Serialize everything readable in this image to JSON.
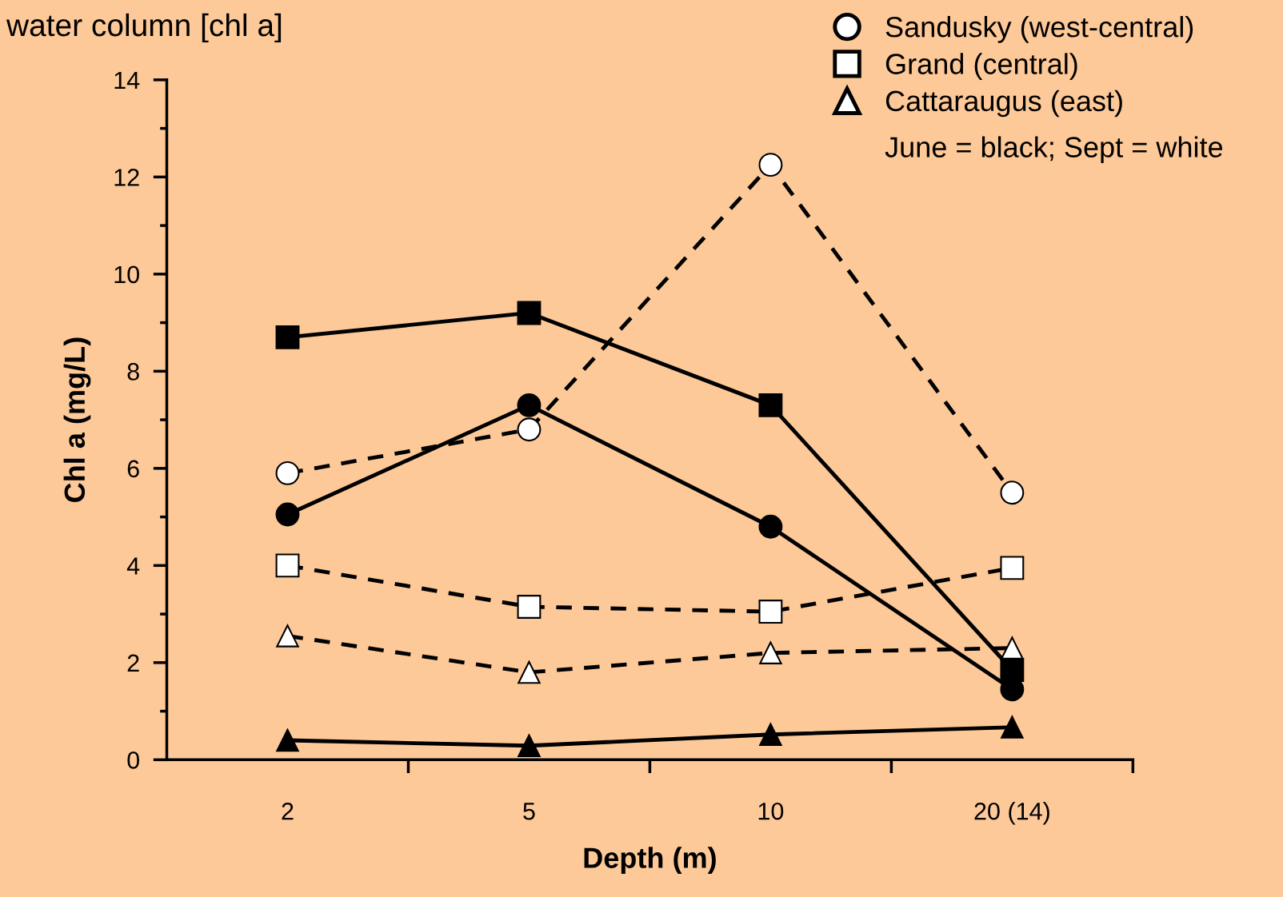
{
  "chart_data": {
    "type": "line",
    "title": "water column [chl a]",
    "xlabel": "Depth (m)",
    "ylabel": "Chl a (mg/L)",
    "categories": [
      "2",
      "5",
      "10",
      "20 (14)"
    ],
    "ylim": [
      0,
      14
    ],
    "yticks": [
      0,
      2,
      4,
      6,
      8,
      10,
      12,
      14
    ],
    "grid": false,
    "legend": "top right",
    "series": [
      {
        "name": "Sandusky (west-central)",
        "color": "#ffffff",
        "marker": "circle",
        "line_style": "dashed",
        "values": [
          5.9,
          6.8,
          12.25,
          5.5
        ]
      },
      {
        "name": "Grand (central)",
        "color": "#ffffff",
        "marker": "square",
        "line_style": "dashed",
        "values": [
          4.0,
          3.15,
          3.05,
          3.95
        ]
      },
      {
        "name": "Cattaraugus (east)",
        "color": "#ffffff",
        "marker": "triangle",
        "line_style": "dashed",
        "values": [
          2.55,
          1.8,
          2.2,
          2.3
        ]
      },
      {
        "color": "#000000",
        "marker": "circle",
        "line_style": "solid",
        "values": [
          5.05,
          7.3,
          4.8,
          1.45
        ]
      },
      {
        "color": "#000000",
        "marker": "square",
        "line_style": "solid",
        "values": [
          8.7,
          9.2,
          7.3,
          1.85
        ]
      },
      {
        "color": "#000000",
        "marker": "triangle",
        "line_style": "solid",
        "values": [
          0.4,
          0.29,
          0.52,
          0.67
        ]
      }
    ],
    "annotations": [
      "June = black; Sept = white"
    ]
  }
}
